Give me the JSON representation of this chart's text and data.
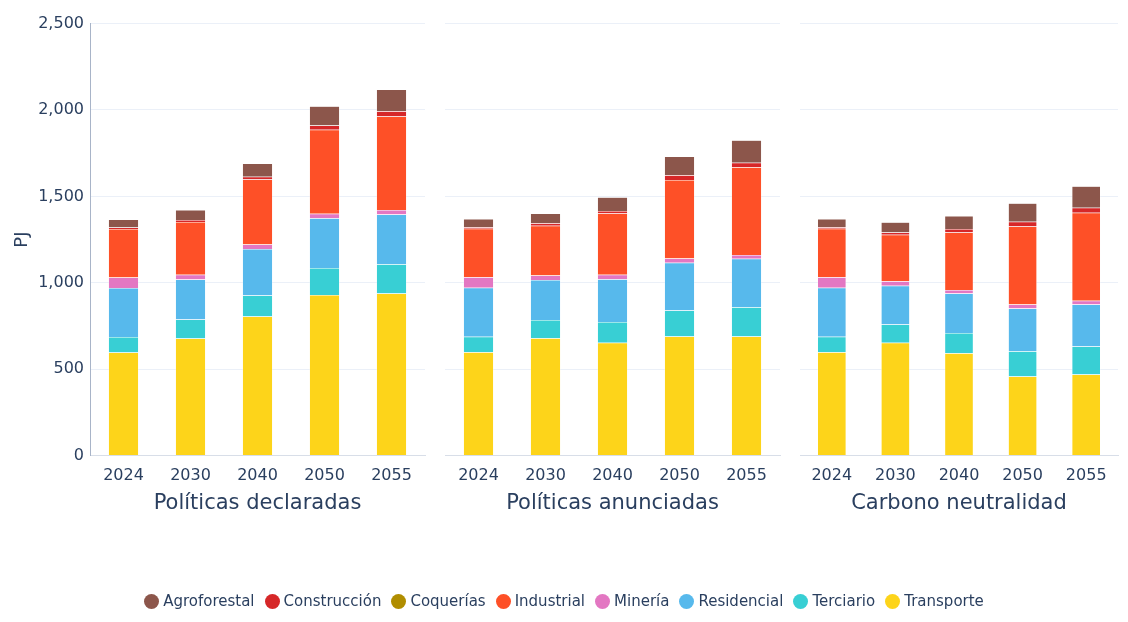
{
  "chart_data": [
    {
      "type": "bar",
      "xlabel": "Políticas declaradas",
      "ylabel": "PJ",
      "categories": [
        "2024",
        "2030",
        "2040",
        "2050",
        "2055"
      ],
      "stacked": true,
      "grid": "y",
      "legend": "bottom",
      "ylim": [
        0,
        2500
      ],
      "yticks": [
        0,
        500,
        {
          "value": 1000,
          "label": "1,000"
        },
        {
          "value": 1500,
          "label": "1,500"
        },
        {
          "value": 2000,
          "label": "2,000"
        },
        {
          "value": 2500,
          "label": "2,500"
        }
      ],
      "series": [
        {
          "name": "Transporte",
          "color": "#fdd41a",
          "values": [
            597,
            678,
            805,
            929,
            938
          ]
        },
        {
          "name": "Terciario",
          "color": "#38cfd4",
          "values": [
            90,
            109,
            122,
            157,
            169
          ]
        },
        {
          "name": "Residencial",
          "color": "#57b9ec",
          "values": [
            283,
            232,
            268,
            287,
            288
          ]
        },
        {
          "name": "Minería",
          "color": "#e377c2",
          "values": [
            60,
            28,
            26,
            26,
            27
          ]
        },
        {
          "name": "Industrial",
          "color": "#fe5027",
          "values": [
            281,
            305,
            377,
            487,
            541
          ]
        },
        {
          "name": "Coquerías",
          "color": "#b08d00",
          "values": [
            0,
            0,
            0,
            0,
            0
          ]
        },
        {
          "name": "Construcción",
          "color": "#d62728",
          "values": [
            9,
            12,
            15,
            24,
            30
          ]
        },
        {
          "name": "Agroforestal",
          "color": "#8c564b",
          "values": [
            47,
            58,
            78,
            111,
            125
          ]
        }
      ]
    },
    {
      "type": "bar",
      "xlabel": "Políticas anunciadas",
      "categories": [
        "2024",
        "2030",
        "2040",
        "2050",
        "2055"
      ],
      "stacked": true,
      "grid": "y",
      "tick_labels": "x",
      "ylim": [
        0,
        2500
      ],
      "yticks": [
        0,
        500,
        1000,
        1500,
        2000,
        2500
      ],
      "series": [
        {
          "color": "#fdd41a",
          "values": [
            597,
            678,
            652,
            689,
            689
          ]
        },
        {
          "color": "#38cfd4",
          "values": [
            90,
            105,
            120,
            150,
            169
          ]
        },
        {
          "color": "#57b9ec",
          "values": [
            283,
            232,
            247,
            275,
            279
          ]
        },
        {
          "color": "#e377c2",
          "values": [
            60,
            26,
            26,
            25,
            22
          ]
        },
        {
          "color": "#fe5027",
          "values": [
            281,
            287,
            354,
            453,
            508
          ]
        },
        {
          "color": "#b08d00",
          "values": [
            0,
            0,
            0,
            0,
            0
          ]
        },
        {
          "color": "#d62728",
          "values": [
            9,
            15,
            15,
            28,
            26
          ]
        },
        {
          "color": "#8c564b",
          "values": [
            47,
            56,
            79,
            109,
            129
          ]
        }
      ]
    },
    {
      "type": "bar",
      "xlabel": "Carbono neutralidad",
      "categories": [
        "2024",
        "2030",
        "2040",
        "2050",
        "2055"
      ],
      "stacked": true,
      "grid": "y",
      "tick_labels": "x",
      "ylim": [
        0,
        2500
      ],
      "yticks": [
        0,
        500,
        1000,
        1500,
        2000,
        2500
      ],
      "series": [
        {
          "color": "#fdd41a",
          "values": [
            597,
            652,
            592,
            457,
            468
          ]
        },
        {
          "color": "#38cfd4",
          "values": [
            90,
            105,
            116,
            146,
            163
          ]
        },
        {
          "color": "#57b9ec",
          "values": [
            283,
            224,
            229,
            247,
            242
          ]
        },
        {
          "color": "#e377c2",
          "values": [
            60,
            27,
            20,
            23,
            22
          ]
        },
        {
          "color": "#fe5027",
          "values": [
            281,
            269,
            333,
            451,
            508
          ]
        },
        {
          "color": "#b08d00",
          "values": [
            0,
            0,
            0,
            0,
            0
          ]
        },
        {
          "color": "#d62728",
          "values": [
            9,
            13,
            19,
            28,
            30
          ]
        },
        {
          "color": "#8c564b",
          "values": [
            47,
            59,
            75,
            107,
            123
          ]
        }
      ]
    }
  ]
}
